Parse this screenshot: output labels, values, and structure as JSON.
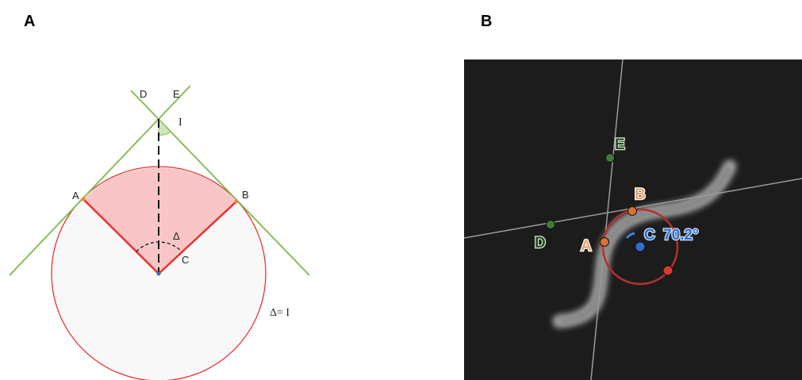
{
  "panels": [
    {
      "title": "A",
      "labels": [
        "D",
        "E",
        "I",
        "A",
        "B",
        "Δ",
        "C",
        "Δ= I"
      ]
    },
    {
      "title": "B",
      "labels": [
        "E",
        "B",
        "D",
        "A",
        "C",
        "70.2°"
      ]
    }
  ]
}
